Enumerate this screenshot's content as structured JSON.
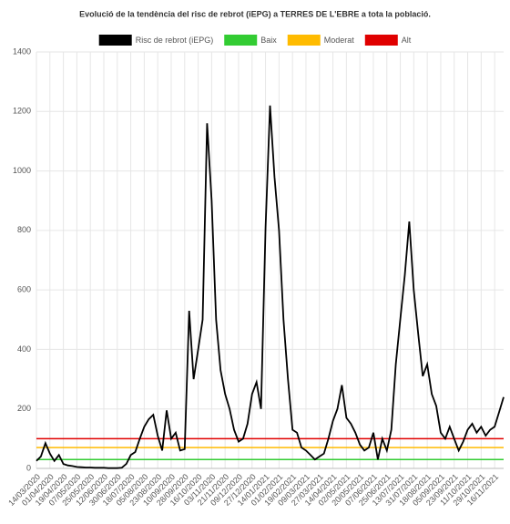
{
  "chart_data": {
    "type": "line",
    "title": "Evolució de la tendència del risc de rebrot (iEPG) a TERRES DE L'EBRE a tota la població.",
    "categories": [
      "14/03/2020",
      null,
      null,
      "01/04/2020",
      null,
      null,
      "19/04/2020",
      null,
      null,
      "07/05/2020",
      null,
      null,
      "25/05/2020",
      null,
      null,
      "12/06/2020",
      null,
      null,
      "30/06/2020",
      null,
      null,
      "18/07/2020",
      null,
      null,
      "05/08/2020",
      null,
      null,
      "23/08/2020",
      null,
      null,
      "10/09/2020",
      null,
      null,
      "28/09/2020",
      null,
      null,
      "16/10/2020",
      null,
      null,
      "03/11/2020",
      null,
      null,
      "21/11/2020",
      null,
      null,
      "09/12/2020",
      null,
      null,
      "27/12/2020",
      null,
      null,
      "14/01/2021",
      null,
      null,
      "01/02/2021",
      null,
      null,
      "19/02/2021",
      null,
      null,
      "09/03/2021",
      null,
      null,
      "27/03/2021",
      null,
      null,
      "14/04/2021",
      null,
      null,
      "02/05/2021",
      null,
      null,
      "20/05/2021",
      null,
      null,
      "07/06/2021",
      null,
      null,
      "25/06/2021",
      null,
      null,
      "13/07/2021",
      null,
      null,
      "31/07/2021",
      null,
      null,
      "18/08/2021",
      null,
      null,
      "05/09/2021",
      null,
      null,
      "23/09/2021",
      null,
      null,
      "11/10/2021",
      null,
      null,
      "29/10/2021",
      null,
      null,
      "16/11/2021",
      null,
      null
    ],
    "series": [
      {
        "name": "Risc de rebrot (iEPG)",
        "color": "#000000",
        "values": [
          25,
          40,
          85,
          50,
          25,
          45,
          15,
          10,
          8,
          5,
          4,
          3,
          3,
          2,
          2,
          2,
          1,
          1,
          1,
          2,
          15,
          45,
          55,
          100,
          140,
          165,
          180,
          110,
          60,
          195,
          100,
          120,
          60,
          65,
          530,
          300,
          400,
          500,
          1160,
          900,
          500,
          330,
          250,
          200,
          130,
          90,
          100,
          150,
          250,
          290,
          200,
          810,
          1220,
          980,
          800,
          500,
          300,
          130,
          120,
          70,
          60,
          45,
          30,
          40,
          50,
          100,
          160,
          200,
          280,
          170,
          150,
          120,
          80,
          60,
          70,
          120,
          30,
          100,
          60,
          130,
          350,
          500,
          650,
          830,
          600,
          450,
          310,
          350,
          250,
          210,
          120,
          100,
          140,
          100,
          60,
          90,
          130,
          150,
          120,
          140,
          110,
          130,
          140,
          190,
          240
        ]
      },
      {
        "name": "Baix",
        "color": "#33cc33",
        "values": [
          30,
          30,
          30,
          30,
          30,
          30,
          30,
          30,
          30,
          30,
          30,
          30,
          30,
          30,
          30,
          30,
          30,
          30,
          30,
          30,
          30,
          30,
          30,
          30,
          30,
          30,
          30,
          30,
          30,
          30,
          30,
          30,
          30,
          30,
          30,
          30,
          30,
          30,
          30,
          30,
          30,
          30,
          30,
          30,
          30,
          30,
          30,
          30,
          30,
          30,
          30,
          30,
          30,
          30,
          30,
          30,
          30,
          30,
          30,
          30,
          30,
          30,
          30,
          30,
          30,
          30,
          30,
          30,
          30,
          30,
          30,
          30,
          30,
          30,
          30,
          30,
          30,
          30,
          30,
          30,
          30,
          30,
          30,
          30,
          30,
          30,
          30,
          30,
          30,
          30,
          30,
          30,
          30,
          30,
          30,
          30,
          30,
          30,
          30,
          30,
          30,
          30,
          30,
          30,
          30
        ]
      },
      {
        "name": "Moderat",
        "color": "#ffbb00",
        "values": [
          70,
          70,
          70,
          70,
          70,
          70,
          70,
          70,
          70,
          70,
          70,
          70,
          70,
          70,
          70,
          70,
          70,
          70,
          70,
          70,
          70,
          70,
          70,
          70,
          70,
          70,
          70,
          70,
          70,
          70,
          70,
          70,
          70,
          70,
          70,
          70,
          70,
          70,
          70,
          70,
          70,
          70,
          70,
          70,
          70,
          70,
          70,
          70,
          70,
          70,
          70,
          70,
          70,
          70,
          70,
          70,
          70,
          70,
          70,
          70,
          70,
          70,
          70,
          70,
          70,
          70,
          70,
          70,
          70,
          70,
          70,
          70,
          70,
          70,
          70,
          70,
          70,
          70,
          70,
          70,
          70,
          70,
          70,
          70,
          70,
          70,
          70,
          70,
          70,
          70,
          70,
          70,
          70,
          70,
          70,
          70,
          70,
          70,
          70,
          70,
          70,
          70,
          70,
          70,
          70
        ]
      },
      {
        "name": "Alt",
        "color": "#e00000",
        "values": [
          100,
          100,
          100,
          100,
          100,
          100,
          100,
          100,
          100,
          100,
          100,
          100,
          100,
          100,
          100,
          100,
          100,
          100,
          100,
          100,
          100,
          100,
          100,
          100,
          100,
          100,
          100,
          100,
          100,
          100,
          100,
          100,
          100,
          100,
          100,
          100,
          100,
          100,
          100,
          100,
          100,
          100,
          100,
          100,
          100,
          100,
          100,
          100,
          100,
          100,
          100,
          100,
          100,
          100,
          100,
          100,
          100,
          100,
          100,
          100,
          100,
          100,
          100,
          100,
          100,
          100,
          100,
          100,
          100,
          100,
          100,
          100,
          100,
          100,
          100,
          100,
          100,
          100,
          100,
          100,
          100,
          100,
          100,
          100,
          100,
          100,
          100,
          100,
          100,
          100,
          100,
          100,
          100,
          100,
          100,
          100,
          100,
          100,
          100,
          100,
          100,
          100,
          100,
          100,
          100
        ]
      }
    ],
    "ylim": [
      0,
      1400
    ],
    "yticks": [
      0,
      200,
      400,
      600,
      800,
      1000,
      1200,
      1400
    ],
    "grid": true
  }
}
